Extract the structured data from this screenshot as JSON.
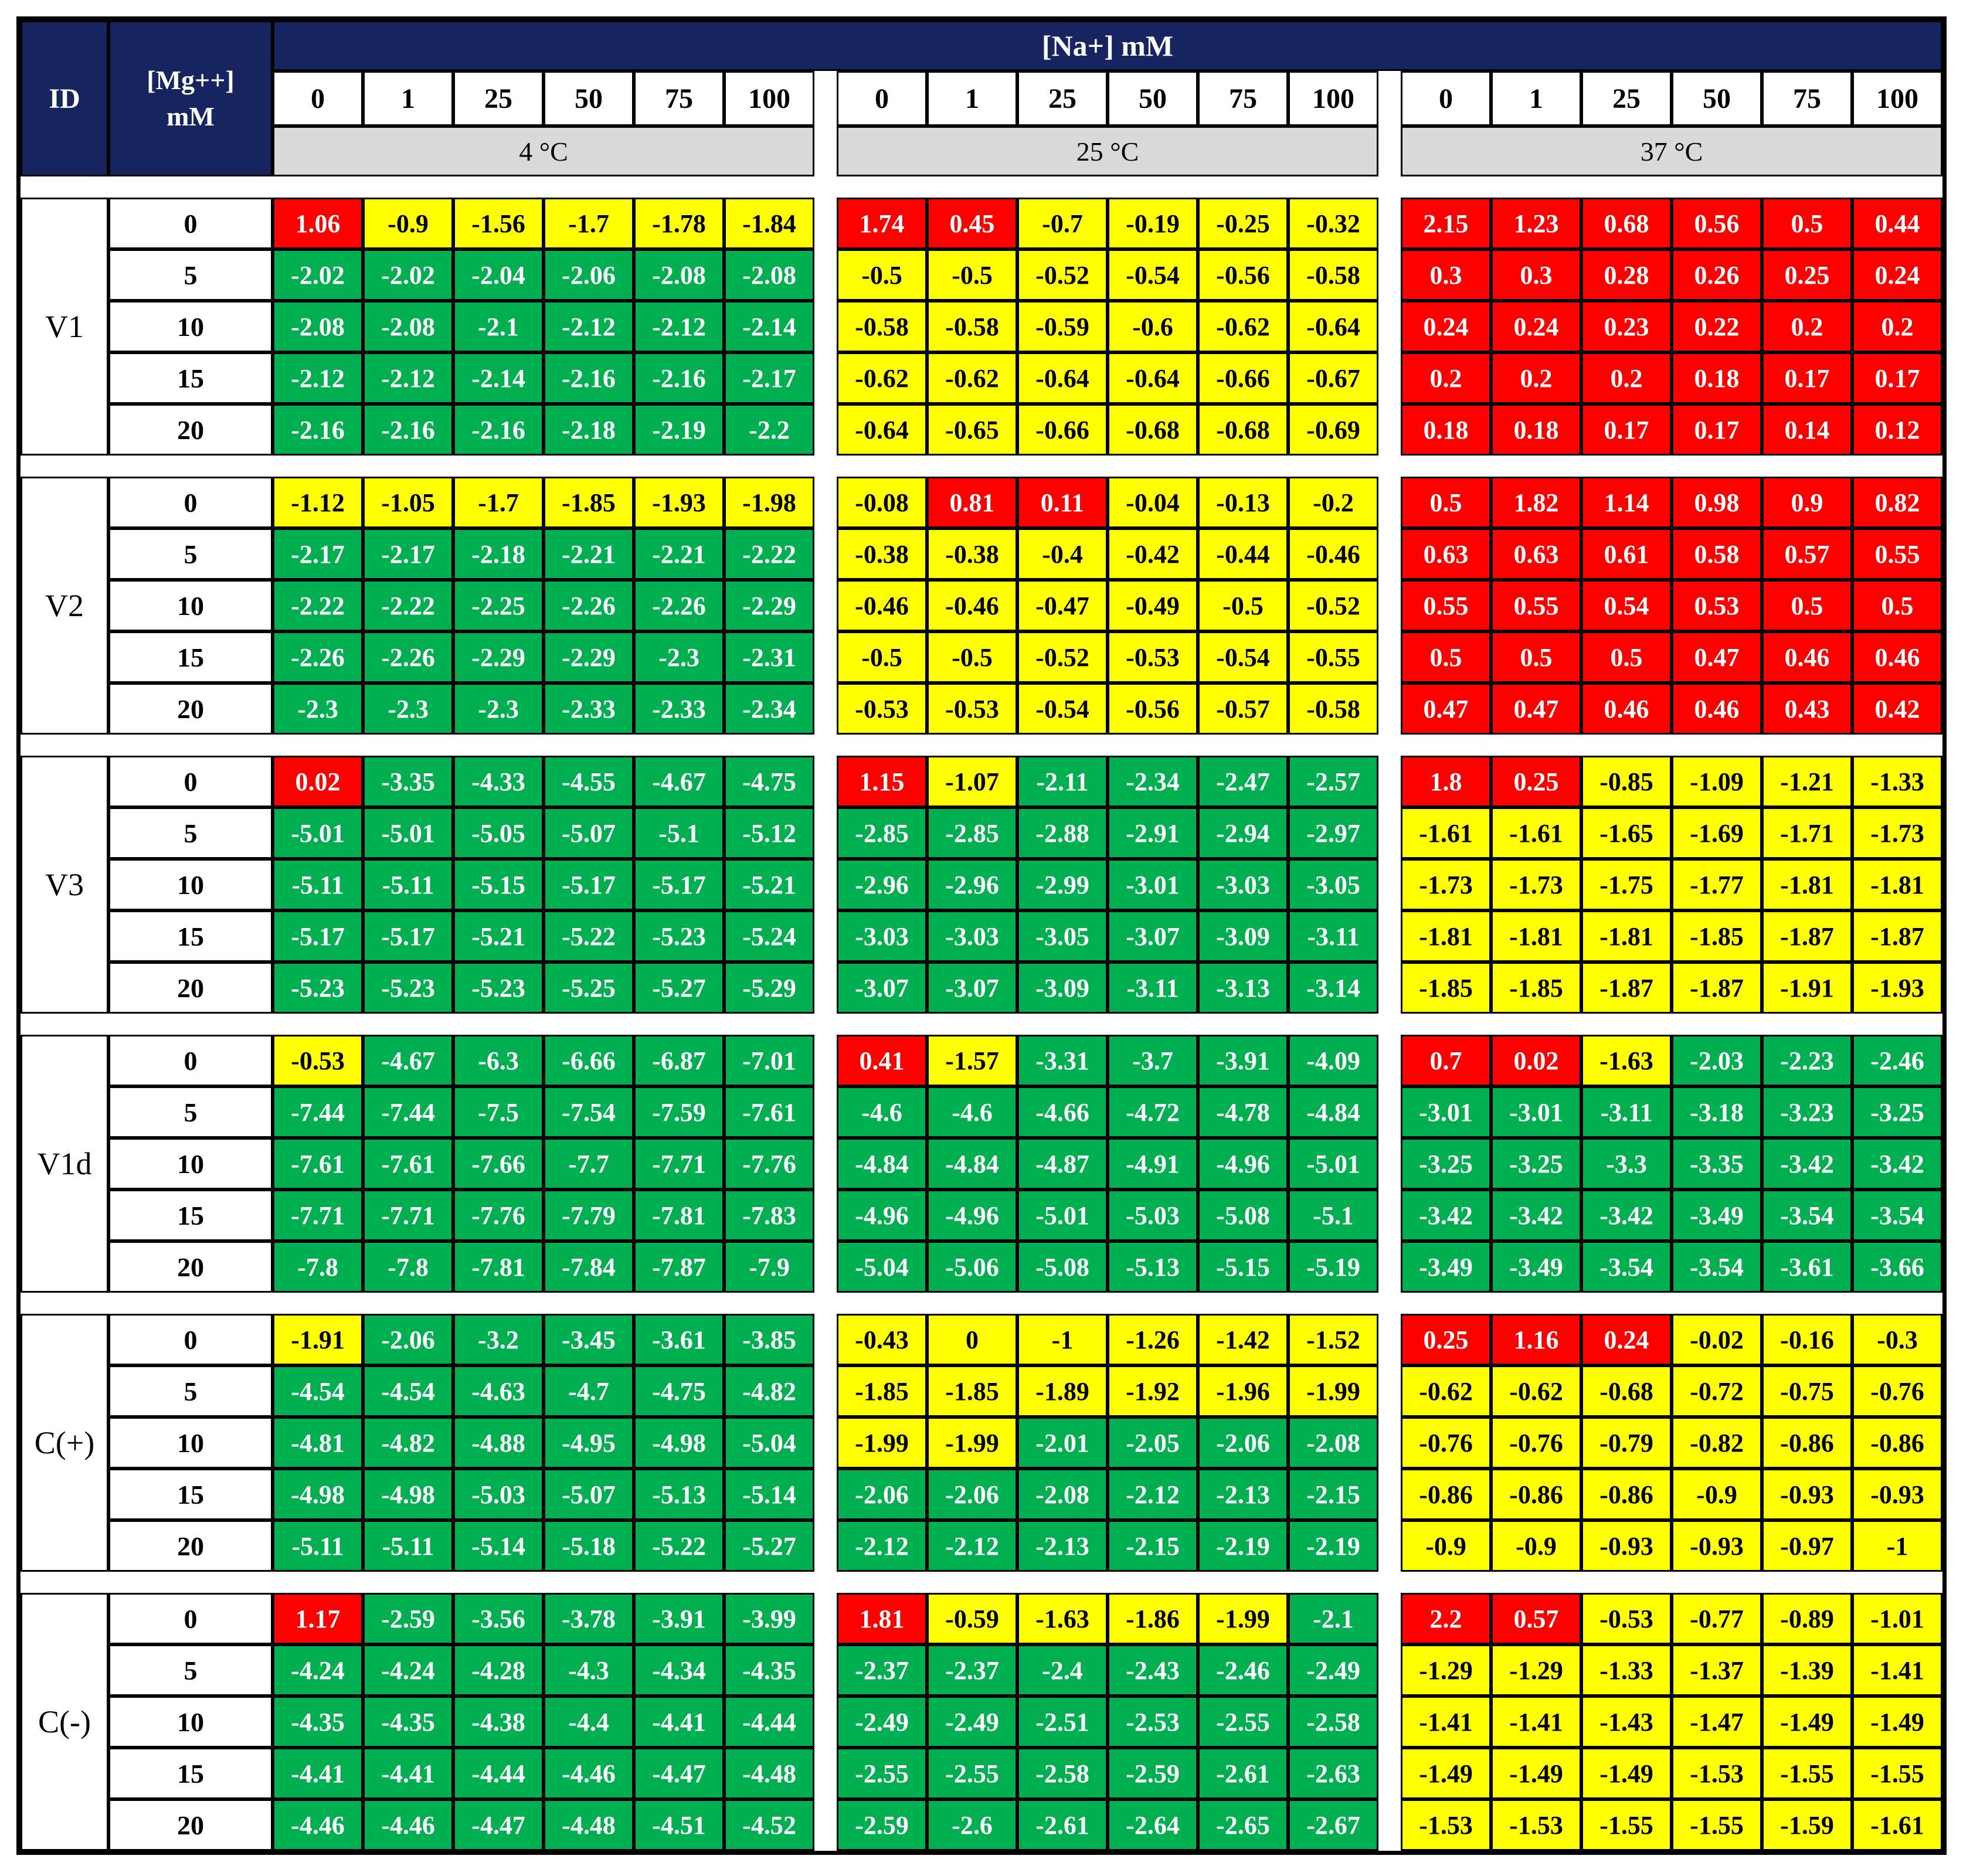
{
  "header": {
    "id_label": "ID",
    "mg_label": "[Mg++]\nmM",
    "na_label": "[Na+] mM",
    "na_concentrations": [
      "0",
      "1",
      "25",
      "50",
      "75",
      "100"
    ],
    "temperatures": [
      "4 °C",
      "25 °C",
      "37 °C"
    ]
  },
  "colors": {
    "red": "#FF0000",
    "yellow": "#FFFF00",
    "green": "#00B050",
    "header_navy": "#162560",
    "temp_gray": "#D9D9D9",
    "grid_black": "#000000"
  },
  "chart_data": {
    "type": "table",
    "title": "",
    "column_groups": [
      "4 °C",
      "25 °C",
      "37 °C"
    ],
    "columns_per_group": [
      "0",
      "1",
      "25",
      "50",
      "75",
      "100"
    ],
    "color_key": {
      "R": "red",
      "Y": "yellow",
      "G": "green"
    },
    "row_groups": [
      {
        "id": "V1",
        "rows": [
          {
            "mg": "0",
            "values": [
              "1.06",
              "-0.9",
              "-1.56",
              "-1.7",
              "-1.78",
              "-1.84",
              "1.74",
              "0.45",
              "-0.7",
              "-0.19",
              "-0.25",
              "-0.32",
              "2.15",
              "1.23",
              "0.68",
              "0.56",
              "0.5",
              "0.44"
            ],
            "colors": "RYYYYYRRYYYYRRRRRR"
          },
          {
            "mg": "5",
            "values": [
              "-2.02",
              "-2.02",
              "-2.04",
              "-2.06",
              "-2.08",
              "-2.08",
              "-0.5",
              "-0.5",
              "-0.52",
              "-0.54",
              "-0.56",
              "-0.58",
              "0.3",
              "0.3",
              "0.28",
              "0.26",
              "0.25",
              "0.24"
            ],
            "colors": "GGGGGGYYYYYYRRRRRR"
          },
          {
            "mg": "10",
            "values": [
              "-2.08",
              "-2.08",
              "-2.1",
              "-2.12",
              "-2.12",
              "-2.14",
              "-0.58",
              "-0.58",
              "-0.59",
              "-0.6",
              "-0.62",
              "-0.64",
              "0.24",
              "0.24",
              "0.23",
              "0.22",
              "0.2",
              "0.2"
            ],
            "colors": "GGGGGGYYYYYYRRRRRR"
          },
          {
            "mg": "15",
            "values": [
              "-2.12",
              "-2.12",
              "-2.14",
              "-2.16",
              "-2.16",
              "-2.17",
              "-0.62",
              "-0.62",
              "-0.64",
              "-0.64",
              "-0.66",
              "-0.67",
              "0.2",
              "0.2",
              "0.2",
              "0.18",
              "0.17",
              "0.17"
            ],
            "colors": "GGGGGGYYYYYYRRRRRR"
          },
          {
            "mg": "20",
            "values": [
              "-2.16",
              "-2.16",
              "-2.16",
              "-2.18",
              "-2.19",
              "-2.2",
              "-0.64",
              "-0.65",
              "-0.66",
              "-0.68",
              "-0.68",
              "-0.69",
              "0.18",
              "0.18",
              "0.17",
              "0.17",
              "0.14",
              "0.12"
            ],
            "colors": "GGGGGGYYYYYYRRRRRR"
          }
        ]
      },
      {
        "id": "V2",
        "rows": [
          {
            "mg": "0",
            "values": [
              "-1.12",
              "-1.05",
              "-1.7",
              "-1.85",
              "-1.93",
              "-1.98",
              "-0.08",
              "0.81",
              "0.11",
              "-0.04",
              "-0.13",
              "-0.2",
              "0.5",
              "1.82",
              "1.14",
              "0.98",
              "0.9",
              "0.82"
            ],
            "colors": "YYYYYYYRRYYYRRRRRR"
          },
          {
            "mg": "5",
            "values": [
              "-2.17",
              "-2.17",
              "-2.18",
              "-2.21",
              "-2.21",
              "-2.22",
              "-0.38",
              "-0.38",
              "-0.4",
              "-0.42",
              "-0.44",
              "-0.46",
              "0.63",
              "0.63",
              "0.61",
              "0.58",
              "0.57",
              "0.55"
            ],
            "colors": "GGGGGGYYYYYYRRRRRR"
          },
          {
            "mg": "10",
            "values": [
              "-2.22",
              "-2.22",
              "-2.25",
              "-2.26",
              "-2.26",
              "-2.29",
              "-0.46",
              "-0.46",
              "-0.47",
              "-0.49",
              "-0.5",
              "-0.52",
              "0.55",
              "0.55",
              "0.54",
              "0.53",
              "0.5",
              "0.5"
            ],
            "colors": "GGGGGGYYYYYYRRRRRR"
          },
          {
            "mg": "15",
            "values": [
              "-2.26",
              "-2.26",
              "-2.29",
              "-2.29",
              "-2.3",
              "-2.31",
              "-0.5",
              "-0.5",
              "-0.52",
              "-0.53",
              "-0.54",
              "-0.55",
              "0.5",
              "0.5",
              "0.5",
              "0.47",
              "0.46",
              "0.46"
            ],
            "colors": "GGGGGGYYYYYYRRRRRR"
          },
          {
            "mg": "20",
            "values": [
              "-2.3",
              "-2.3",
              "-2.3",
              "-2.33",
              "-2.33",
              "-2.34",
              "-0.53",
              "-0.53",
              "-0.54",
              "-0.56",
              "-0.57",
              "-0.58",
              "0.47",
              "0.47",
              "0.46",
              "0.46",
              "0.43",
              "0.42"
            ],
            "colors": "GGGGGGYYYYYYRRRRRR"
          }
        ]
      },
      {
        "id": "V3",
        "rows": [
          {
            "mg": "0",
            "values": [
              "0.02",
              "-3.35",
              "-4.33",
              "-4.55",
              "-4.67",
              "-4.75",
              "1.15",
              "-1.07",
              "-2.11",
              "-2.34",
              "-2.47",
              "-2.57",
              "1.8",
              "0.25",
              "-0.85",
              "-1.09",
              "-1.21",
              "-1.33"
            ],
            "colors": "RGGGGGRYGGGGRRYYYY"
          },
          {
            "mg": "5",
            "values": [
              "-5.01",
              "-5.01",
              "-5.05",
              "-5.07",
              "-5.1",
              "-5.12",
              "-2.85",
              "-2.85",
              "-2.88",
              "-2.91",
              "-2.94",
              "-2.97",
              "-1.61",
              "-1.61",
              "-1.65",
              "-1.69",
              "-1.71",
              "-1.73"
            ],
            "colors": "GGGGGGGGGGGGYYYYYY"
          },
          {
            "mg": "10",
            "values": [
              "-5.11",
              "-5.11",
              "-5.15",
              "-5.17",
              "-5.17",
              "-5.21",
              "-2.96",
              "-2.96",
              "-2.99",
              "-3.01",
              "-3.03",
              "-3.05",
              "-1.73",
              "-1.73",
              "-1.75",
              "-1.77",
              "-1.81",
              "-1.81"
            ],
            "colors": "GGGGGGGGGGGGYYYYYY"
          },
          {
            "mg": "15",
            "values": [
              "-5.17",
              "-5.17",
              "-5.21",
              "-5.22",
              "-5.23",
              "-5.24",
              "-3.03",
              "-3.03",
              "-3.05",
              "-3.07",
              "-3.09",
              "-3.11",
              "-1.81",
              "-1.81",
              "-1.81",
              "-1.85",
              "-1.87",
              "-1.87"
            ],
            "colors": "GGGGGGGGGGGGYYYYYY"
          },
          {
            "mg": "20",
            "values": [
              "-5.23",
              "-5.23",
              "-5.23",
              "-5.25",
              "-5.27",
              "-5.29",
              "-3.07",
              "-3.07",
              "-3.09",
              "-3.11",
              "-3.13",
              "-3.14",
              "-1.85",
              "-1.85",
              "-1.87",
              "-1.87",
              "-1.91",
              "-1.93"
            ],
            "colors": "GGGGGGGGGGGGYYYYYY"
          }
        ]
      },
      {
        "id": "V1d",
        "rows": [
          {
            "mg": "0",
            "values": [
              "-0.53",
              "-4.67",
              "-6.3",
              "-6.66",
              "-6.87",
              "-7.01",
              "0.41",
              "-1.57",
              "-3.31",
              "-3.7",
              "-3.91",
              "-4.09",
              "0.7",
              "0.02",
              "-1.63",
              "-2.03",
              "-2.23",
              "-2.46"
            ],
            "colors": "YGGGGGRYGGGGRRYGGG"
          },
          {
            "mg": "5",
            "values": [
              "-7.44",
              "-7.44",
              "-7.5",
              "-7.54",
              "-7.59",
              "-7.61",
              "-4.6",
              "-4.6",
              "-4.66",
              "-4.72",
              "-4.78",
              "-4.84",
              "-3.01",
              "-3.01",
              "-3.11",
              "-3.18",
              "-3.23",
              "-3.25"
            ],
            "colors": "GGGGGGGGGGGGGGGGGG"
          },
          {
            "mg": "10",
            "values": [
              "-7.61",
              "-7.61",
              "-7.66",
              "-7.7",
              "-7.71",
              "-7.76",
              "-4.84",
              "-4.84",
              "-4.87",
              "-4.91",
              "-4.96",
              "-5.01",
              "-3.25",
              "-3.25",
              "-3.3",
              "-3.35",
              "-3.42",
              "-3.42"
            ],
            "colors": "GGGGGGGGGGGGGGGGGG"
          },
          {
            "mg": "15",
            "values": [
              "-7.71",
              "-7.71",
              "-7.76",
              "-7.79",
              "-7.81",
              "-7.83",
              "-4.96",
              "-4.96",
              "-5.01",
              "-5.03",
              "-5.08",
              "-5.1",
              "-3.42",
              "-3.42",
              "-3.42",
              "-3.49",
              "-3.54",
              "-3.54"
            ],
            "colors": "GGGGGGGGGGGGGGGGGG"
          },
          {
            "mg": "20",
            "values": [
              "-7.8",
              "-7.8",
              "-7.81",
              "-7.84",
              "-7.87",
              "-7.9",
              "-5.04",
              "-5.06",
              "-5.08",
              "-5.13",
              "-5.15",
              "-5.19",
              "-3.49",
              "-3.49",
              "-3.54",
              "-3.54",
              "-3.61",
              "-3.66"
            ],
            "colors": "GGGGGGGGGGGGGGGGGG"
          }
        ]
      },
      {
        "id": "C(+)",
        "rows": [
          {
            "mg": "0",
            "values": [
              "-1.91",
              "-2.06",
              "-3.2",
              "-3.45",
              "-3.61",
              "-3.85",
              "-0.43",
              "0",
              "-1",
              "-1.26",
              "-1.42",
              "-1.52",
              "0.25",
              "1.16",
              "0.24",
              "-0.02",
              "-0.16",
              "-0.3"
            ],
            "colors": "YGGGGGYYYYYYRRRYYY"
          },
          {
            "mg": "5",
            "values": [
              "-4.54",
              "-4.54",
              "-4.63",
              "-4.7",
              "-4.75",
              "-4.82",
              "-1.85",
              "-1.85",
              "-1.89",
              "-1.92",
              "-1.96",
              "-1.99",
              "-0.62",
              "-0.62",
              "-0.68",
              "-0.72",
              "-0.75",
              "-0.76"
            ],
            "colors": "GGGGGGYYYYYYYYYYYY"
          },
          {
            "mg": "10",
            "values": [
              "-4.81",
              "-4.82",
              "-4.88",
              "-4.95",
              "-4.98",
              "-5.04",
              "-1.99",
              "-1.99",
              "-2.01",
              "-2.05",
              "-2.06",
              "-2.08",
              "-0.76",
              "-0.76",
              "-0.79",
              "-0.82",
              "-0.86",
              "-0.86"
            ],
            "colors": "GGGGGGYYGGGGYYYYYY"
          },
          {
            "mg": "15",
            "values": [
              "-4.98",
              "-4.98",
              "-5.03",
              "-5.07",
              "-5.13",
              "-5.14",
              "-2.06",
              "-2.06",
              "-2.08",
              "-2.12",
              "-2.13",
              "-2.15",
              "-0.86",
              "-0.86",
              "-0.86",
              "-0.9",
              "-0.93",
              "-0.93"
            ],
            "colors": "GGGGGGGGGGGGYYYYYY"
          },
          {
            "mg": "20",
            "values": [
              "-5.11",
              "-5.11",
              "-5.14",
              "-5.18",
              "-5.22",
              "-5.27",
              "-2.12",
              "-2.12",
              "-2.13",
              "-2.15",
              "-2.19",
              "-2.19",
              "-0.9",
              "-0.9",
              "-0.93",
              "-0.93",
              "-0.97",
              "-1"
            ],
            "colors": "GGGGGGGGGGGGYYYYYY"
          }
        ]
      },
      {
        "id": "C(-)",
        "rows": [
          {
            "mg": "0",
            "values": [
              "1.17",
              "-2.59",
              "-3.56",
              "-3.78",
              "-3.91",
              "-3.99",
              "1.81",
              "-0.59",
              "-1.63",
              "-1.86",
              "-1.99",
              "-2.1",
              "2.2",
              "0.57",
              "-0.53",
              "-0.77",
              "-0.89",
              "-1.01"
            ],
            "colors": "RGGGGGRYYYYGRRYYYY"
          },
          {
            "mg": "5",
            "values": [
              "-4.24",
              "-4.24",
              "-4.28",
              "-4.3",
              "-4.34",
              "-4.35",
              "-2.37",
              "-2.37",
              "-2.4",
              "-2.43",
              "-2.46",
              "-2.49",
              "-1.29",
              "-1.29",
              "-1.33",
              "-1.37",
              "-1.39",
              "-1.41"
            ],
            "colors": "GGGGGGGGGGGGYYYYYY"
          },
          {
            "mg": "10",
            "values": [
              "-4.35",
              "-4.35",
              "-4.38",
              "-4.4",
              "-4.41",
              "-4.44",
              "-2.49",
              "-2.49",
              "-2.51",
              "-2.53",
              "-2.55",
              "-2.58",
              "-1.41",
              "-1.41",
              "-1.43",
              "-1.47",
              "-1.49",
              "-1.49"
            ],
            "colors": "GGGGGGGGGGGGYYYYYY"
          },
          {
            "mg": "15",
            "values": [
              "-4.41",
              "-4.41",
              "-4.44",
              "-4.46",
              "-4.47",
              "-4.48",
              "-2.55",
              "-2.55",
              "-2.58",
              "-2.59",
              "-2.61",
              "-2.63",
              "-1.49",
              "-1.49",
              "-1.49",
              "-1.53",
              "-1.55",
              "-1.55"
            ],
            "colors": "GGGGGGGGGGGGYYYYYY"
          },
          {
            "mg": "20",
            "values": [
              "-4.46",
              "-4.46",
              "-4.47",
              "-4.48",
              "-4.51",
              "-4.52",
              "-2.59",
              "-2.6",
              "-2.61",
              "-2.64",
              "-2.65",
              "-2.67",
              "-1.53",
              "-1.53",
              "-1.55",
              "-1.55",
              "-1.59",
              "-1.61"
            ],
            "colors": "GGGGGGGGGGGGYYYYYY"
          }
        ]
      }
    ]
  }
}
